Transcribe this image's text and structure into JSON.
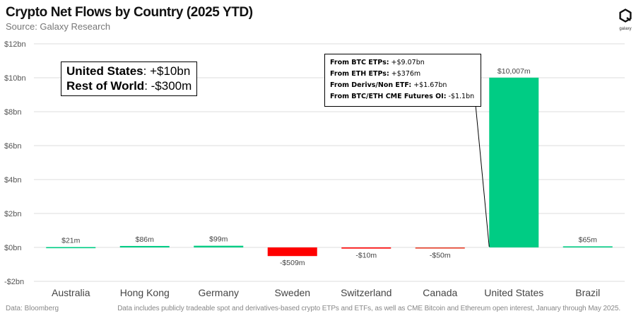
{
  "header": {
    "title": "Crypto Net Flows by Country (2025 YTD)",
    "subtitle": "Source: Galaxy Research"
  },
  "logo": {
    "word": "galaxy"
  },
  "summary": [
    {
      "label": "United States",
      "value": ": +$10bn"
    },
    {
      "label": "Rest of World",
      "value": ": -$300m"
    }
  ],
  "annotation": [
    {
      "label": "From BTC ETPs:",
      "value": " +$9.07bn"
    },
    {
      "label": "From ETH ETPs:",
      "value": " +$376m"
    },
    {
      "label": "From Derivs/Non ETF:",
      "value": " +$1.67bn"
    },
    {
      "label": "From BTC/ETH CME Futures OI:",
      "value": " -$1.1bn"
    }
  ],
  "footer": {
    "source": "Data: Bloomberg",
    "note": "Data includes publicly tradeable spot and derivatives-based crypto ETPs and ETFs, as well as CME Bitcoin and Ethereum open interest, January through May 2025."
  },
  "colors": {
    "positive": "#00cc84",
    "negative": "#ff0000",
    "canada": "#e8402a",
    "grid": "#dddddd"
  },
  "chart_data": {
    "type": "bar",
    "title": "Crypto Net Flows by Country (2025 YTD)",
    "unit": "millions USD",
    "categories": [
      "Australia",
      "Hong Kong",
      "Germany",
      "Sweden",
      "Switzerland",
      "Canada",
      "United States",
      "Brazil"
    ],
    "values": [
      21,
      86,
      99,
      -509,
      -10,
      -50,
      10007,
      65
    ],
    "data_labels": [
      "$21m",
      "$86m",
      "$99m",
      "-$509m",
      "-$10m",
      "-$50m",
      "$10,007m",
      "$65m"
    ],
    "y_ticks": [
      -2000,
      0,
      2000,
      4000,
      6000,
      8000,
      10000,
      12000
    ],
    "y_tick_labels": [
      "-$2bn",
      "$0bn",
      "$2bn",
      "$4bn",
      "$6bn",
      "$8bn",
      "$10bn",
      "$12bn"
    ],
    "ylim": [
      -2000,
      12000
    ],
    "grid": true,
    "legend": "none"
  }
}
